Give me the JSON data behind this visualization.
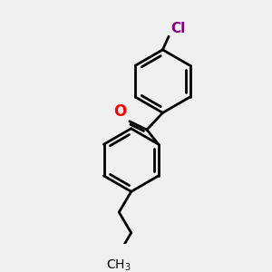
{
  "bg_color": "#f0f0f0",
  "bond_color": "#000000",
  "bond_width": 2.0,
  "O_color": "#ff0000",
  "Cl_color": "#800080",
  "text_color": "#000000",
  "figsize": [
    3.0,
    3.0
  ],
  "dpi": 100
}
